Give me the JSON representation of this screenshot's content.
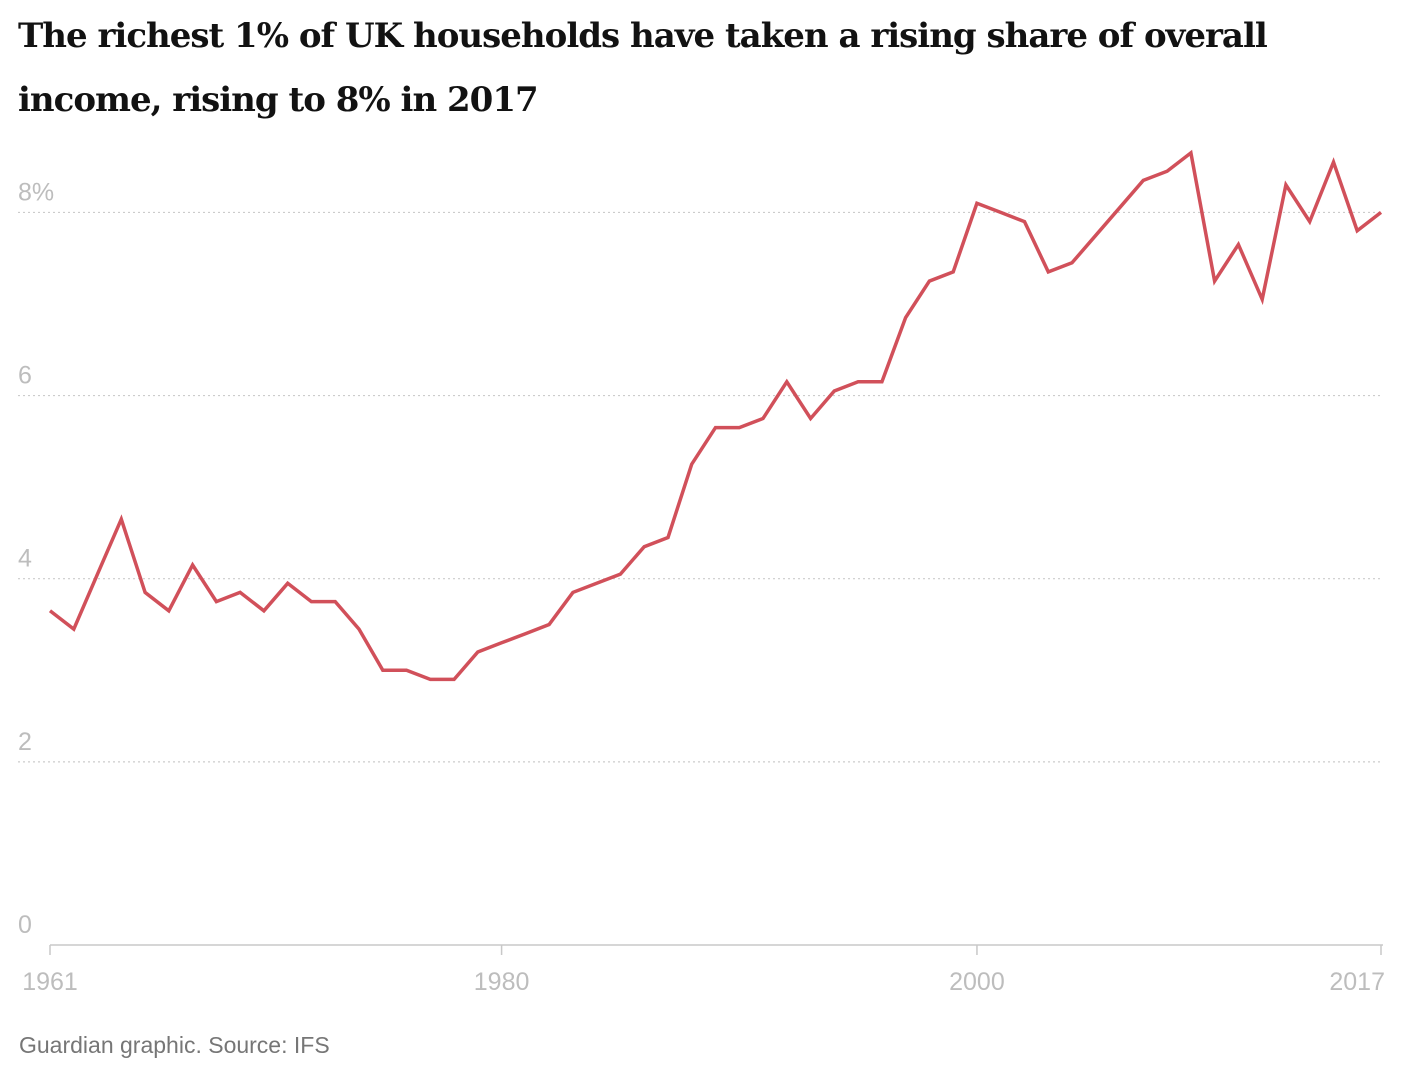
{
  "title": "The richest 1% of UK households have taken a rising share of overall income, rising to 8% in 2017",
  "source": "Guardian graphic. Source: IFS",
  "colors": {
    "line": "#d1505a",
    "grid": "#cccccc",
    "axis": "#c8c8c8",
    "tick_text": "#bdbdbd",
    "source_text": "#767676"
  },
  "chart_data": {
    "type": "line",
    "title": "The richest 1% of UK households have taken a rising share of overall income, rising to 8% in 2017",
    "xlabel": "",
    "ylabel": "",
    "xlim": [
      1961,
      2017
    ],
    "ylim": [
      0,
      8.9
    ],
    "grid": true,
    "legend": "none",
    "x_ticks": [
      1961,
      1980,
      2000,
      2017
    ],
    "x_tick_labels": [
      "1961",
      "1980",
      "2000",
      "2017"
    ],
    "y_ticks": [
      0,
      2,
      4,
      6,
      8
    ],
    "y_tick_labels": [
      "0",
      "2",
      "4",
      "6",
      "8%"
    ],
    "series": [
      {
        "x": [
          1961,
          1962,
          1963,
          1964,
          1965,
          1966,
          1967,
          1968,
          1969,
          1970,
          1971,
          1972,
          1973,
          1974,
          1975,
          1976,
          1977,
          1978,
          1979,
          1980,
          1981,
          1982,
          1983,
          1984,
          1985,
          1986,
          1987,
          1988,
          1989,
          1990,
          1991,
          1992,
          1993,
          1994,
          1995,
          1996,
          1997,
          1998,
          1999,
          2000,
          2001,
          2002,
          2003,
          2004,
          2005,
          2006,
          2007,
          2008,
          2009,
          2010,
          2011,
          2012,
          2013,
          2014,
          2015,
          2016,
          2017
        ],
        "values": [
          3.65,
          3.45,
          4.05,
          4.65,
          3.85,
          3.65,
          4.15,
          3.75,
          3.85,
          3.65,
          3.95,
          3.75,
          3.75,
          3.45,
          3.0,
          3.0,
          2.9,
          2.9,
          3.2,
          3.3,
          3.4,
          3.5,
          3.85,
          3.95,
          4.05,
          4.35,
          4.45,
          5.25,
          5.65,
          5.65,
          5.75,
          6.15,
          5.75,
          6.05,
          6.15,
          6.15,
          6.85,
          7.25,
          7.35,
          8.1,
          8.0,
          7.9,
          7.35,
          7.45,
          7.75,
          8.05,
          8.35,
          8.45,
          8.65,
          7.25,
          7.65,
          7.05,
          8.3,
          7.9,
          8.55,
          7.8,
          8.0
        ]
      }
    ]
  }
}
